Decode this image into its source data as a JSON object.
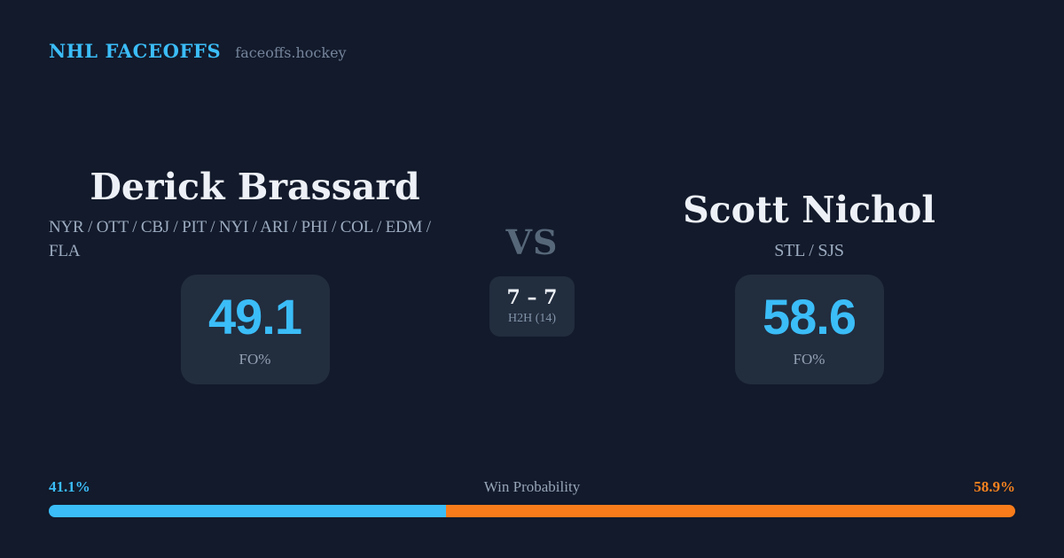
{
  "brand": {
    "title": "NHL FACEOFFS",
    "site": "faceoffs.hockey"
  },
  "players": {
    "left": {
      "name": "Derick Brassard",
      "teams": "NYR / OTT / CBJ / PIT / NYI / ARI / PHI / COL / EDM / FLA",
      "fo_pct": "49.1",
      "stat_label": "FO%"
    },
    "right": {
      "name": "Scott Nichol",
      "teams": "STL / SJS",
      "fo_pct": "58.6",
      "stat_label": "FO%"
    }
  },
  "versus": {
    "label": "VS",
    "h2h_score": "7 – 7",
    "h2h_label": "H2H (14)"
  },
  "win_probability": {
    "title": "Win Probability",
    "left_label": "41.1%",
    "right_label": "58.9%",
    "left_percent": 41.1,
    "right_percent": 58.9
  },
  "colors": {
    "background": "#121a2b",
    "panel": "#222d3e",
    "accent_blue": "#3bbdf8",
    "accent_orange": "#f97c1b"
  }
}
